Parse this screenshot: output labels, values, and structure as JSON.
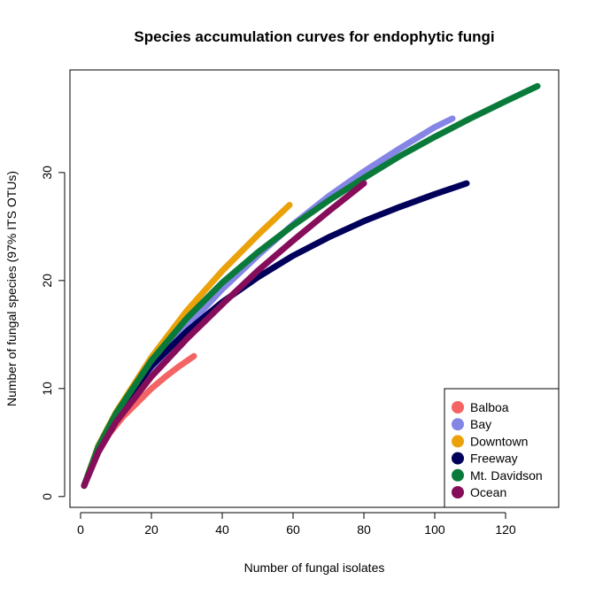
{
  "chart_data": {
    "type": "line",
    "title": "Species accumulation curves for endophytic fungi",
    "xlabel": "Number of fungal isolates",
    "ylabel": "Number of fungal species (97% ITS OTUs)",
    "xlim": [
      -3,
      135
    ],
    "ylim": [
      -1,
      39.5
    ],
    "xticks": [
      0,
      20,
      40,
      60,
      80,
      100,
      120
    ],
    "yticks": [
      0,
      10,
      20,
      30
    ],
    "grid": false,
    "legend": {
      "position": "bottom-right"
    },
    "series": [
      {
        "name": "Balboa",
        "color": "#f46464",
        "x": [
          1,
          4,
          8,
          12,
          16,
          20,
          24,
          28,
          32
        ],
        "y": [
          1,
          3.6,
          5.8,
          7.4,
          8.7,
          10.0,
          11.1,
          12.1,
          13.0
        ]
      },
      {
        "name": "Bay",
        "color": "#8585e6",
        "x": [
          1,
          5,
          10,
          20,
          30,
          40,
          50,
          60,
          70,
          80,
          90,
          100,
          105
        ],
        "y": [
          1,
          4.3,
          7.2,
          11.8,
          15.7,
          19.2,
          22.3,
          25.2,
          27.8,
          30.1,
          32.2,
          34.2,
          35.0
        ]
      },
      {
        "name": "Downtown",
        "color": "#eba20a",
        "x": [
          1,
          5,
          10,
          20,
          30,
          40,
          50,
          59
        ],
        "y": [
          1,
          4.7,
          7.8,
          12.9,
          17.2,
          20.9,
          24.2,
          27.0
        ]
      },
      {
        "name": "Freeway",
        "color": "#00005a",
        "x": [
          1,
          5,
          10,
          20,
          30,
          40,
          50,
          60,
          70,
          80,
          90,
          100,
          109
        ],
        "y": [
          1,
          4.5,
          7.6,
          12.1,
          15.3,
          18.0,
          20.3,
          22.3,
          24.0,
          25.5,
          26.8,
          28.0,
          29.0
        ]
      },
      {
        "name": "Mt. Davidson",
        "color": "#0a7a3a",
        "x": [
          1,
          5,
          10,
          20,
          30,
          40,
          50,
          60,
          70,
          80,
          90,
          100,
          110,
          120,
          129
        ],
        "y": [
          1,
          4.6,
          7.7,
          12.6,
          16.5,
          19.8,
          22.6,
          25.1,
          27.4,
          29.5,
          31.5,
          33.3,
          35.0,
          36.6,
          38.0
        ]
      },
      {
        "name": "Ocean",
        "color": "#860d5a",
        "x": [
          1,
          5,
          10,
          20,
          30,
          40,
          50,
          60,
          70,
          80
        ],
        "y": [
          1,
          4.1,
          6.9,
          11.1,
          14.6,
          17.8,
          20.9,
          23.7,
          26.4,
          29.0
        ]
      }
    ]
  }
}
